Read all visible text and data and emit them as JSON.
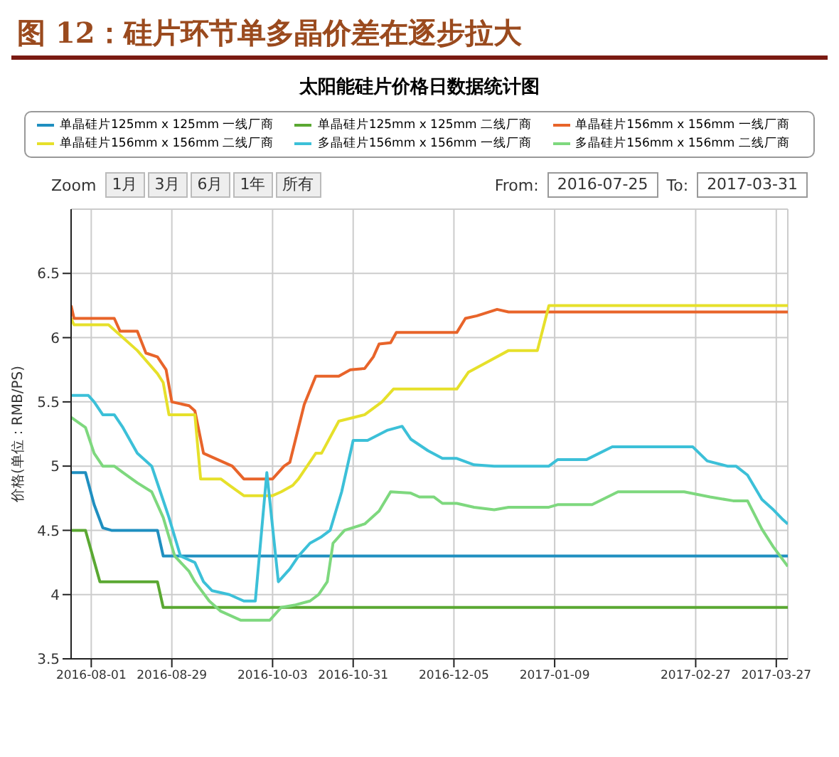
{
  "chart_data": {
    "type": "line",
    "title": "图 12：硅片环节单多晶价差在逐步拉大",
    "subtitle": "太阳能硅片价格日数据统计图",
    "ylabel": "价格(单位：RMB/PS)",
    "annotations": [
      "Zoom",
      "1月",
      "3月",
      "6月",
      "1年",
      "所有",
      "From:",
      "2016-07-25",
      "To:",
      "2017-03-31"
    ],
    "xlim": [
      "2016-07-25",
      "2017-03-31"
    ],
    "xticks": [
      "2016-08-01",
      "2016-08-29",
      "2016-10-03",
      "2016-10-31",
      "2016-12-05",
      "2017-01-09",
      "2017-02-27",
      "2017-03-27"
    ],
    "ylim": [
      3.5,
      7
    ],
    "yticks": [
      3.5,
      4,
      4.5,
      5,
      5.5,
      6,
      6.5
    ],
    "grid": true,
    "legend": "top",
    "series": [
      {
        "name": "单晶硅片125mm x 125mm 一线厂商",
        "color": "#1f8fc0",
        "x": [
          "2016-07-25",
          "2016-07-30",
          "2016-08-02",
          "2016-08-05",
          "2016-08-08",
          "2016-08-24",
          "2016-08-26",
          "2017-03-31"
        ],
        "values": [
          4.95,
          4.95,
          4.7,
          4.52,
          4.5,
          4.5,
          4.3,
          4.3
        ]
      },
      {
        "name": "单晶硅片125mm x 125mm 二线厂商",
        "color": "#5aa832",
        "x": [
          "2016-07-25",
          "2016-07-30",
          "2016-08-04",
          "2016-08-24",
          "2016-08-26",
          "2017-03-31"
        ],
        "values": [
          4.5,
          4.5,
          4.1,
          4.1,
          3.9,
          3.9
        ]
      },
      {
        "name": "单晶硅片156mm x 156mm 一线厂商",
        "color": "#e8642a",
        "x": [
          "2016-07-25",
          "2016-07-26",
          "2016-08-09",
          "2016-08-11",
          "2016-08-17",
          "2016-08-20",
          "2016-08-24",
          "2016-08-27",
          "2016-08-29",
          "2016-09-04",
          "2016-09-06",
          "2016-09-09",
          "2016-09-14",
          "2016-09-19",
          "2016-09-23",
          "2016-10-03",
          "2016-10-07",
          "2016-10-09",
          "2016-10-14",
          "2016-10-18",
          "2016-10-26",
          "2016-10-30",
          "2016-11-04",
          "2016-11-07",
          "2016-11-09",
          "2016-11-13",
          "2016-11-15",
          "2016-12-06",
          "2016-12-09",
          "2016-12-13",
          "2016-12-20",
          "2016-12-24",
          "2017-03-31"
        ],
        "values": [
          6.25,
          6.15,
          6.15,
          6.05,
          6.05,
          5.88,
          5.85,
          5.75,
          5.5,
          5.47,
          5.43,
          5.1,
          5.05,
          5,
          4.9,
          4.9,
          5,
          5.03,
          5.48,
          5.7,
          5.7,
          5.75,
          5.76,
          5.85,
          5.95,
          5.96,
          6.04,
          6.04,
          6.15,
          6.17,
          6.22,
          6.2,
          6.2
        ]
      },
      {
        "name": "单晶硅片156mm x 156mm 二线厂商",
        "color": "#e6e02a",
        "x": [
          "2016-07-25",
          "2016-07-26",
          "2016-08-07",
          "2016-08-17",
          "2016-08-24",
          "2016-08-26",
          "2016-08-28",
          "2016-09-06",
          "2016-09-08",
          "2016-09-15",
          "2016-09-18",
          "2016-09-23",
          "2016-10-03",
          "2016-10-06",
          "2016-10-10",
          "2016-10-12",
          "2016-10-18",
          "2016-10-20",
          "2016-10-26",
          "2016-11-04",
          "2016-11-10",
          "2016-11-14",
          "2016-12-06",
          "2016-12-10",
          "2016-12-24",
          "2017-01-03",
          "2017-01-07",
          "2017-03-31"
        ],
        "values": [
          6.15,
          6.1,
          6.1,
          5.9,
          5.72,
          5.65,
          5.4,
          5.4,
          4.9,
          4.9,
          4.85,
          4.77,
          4.77,
          4.8,
          4.85,
          4.9,
          5.1,
          5.1,
          5.35,
          5.4,
          5.5,
          5.6,
          5.6,
          5.73,
          5.9,
          5.9,
          6.25,
          6.25
        ]
      },
      {
        "name": "多晶硅片156mm x 156mm 一线厂商",
        "color": "#3cc0d8",
        "x": [
          "2016-07-25",
          "2016-07-31",
          "2016-08-02",
          "2016-08-05",
          "2016-08-09",
          "2016-08-12",
          "2016-08-17",
          "2016-08-22",
          "2016-08-25",
          "2016-08-28",
          "2016-09-01",
          "2016-09-06",
          "2016-09-09",
          "2016-09-12",
          "2016-09-18",
          "2016-09-23",
          "2016-09-27",
          "2016-10-01",
          "2016-10-05",
          "2016-10-09",
          "2016-10-12",
          "2016-10-16",
          "2016-10-20",
          "2016-10-23",
          "2016-10-27",
          "2016-10-31",
          "2016-11-05",
          "2016-11-12",
          "2016-11-17",
          "2016-11-20",
          "2016-11-26",
          "2016-12-01",
          "2016-12-06",
          "2016-12-12",
          "2016-12-19",
          "2017-01-07",
          "2017-01-10",
          "2017-01-20",
          "2017-01-29",
          "2017-02-26",
          "2017-03-03",
          "2017-03-10",
          "2017-03-13",
          "2017-03-17",
          "2017-03-22",
          "2017-03-26",
          "2017-03-29",
          "2017-03-31"
        ],
        "values": [
          5.55,
          5.55,
          5.5,
          5.4,
          5.4,
          5.3,
          5.1,
          5,
          4.8,
          4.6,
          4.3,
          4.25,
          4.1,
          4.03,
          4,
          3.95,
          3.95,
          4.95,
          4.1,
          4.2,
          4.3,
          4.4,
          4.45,
          4.5,
          4.8,
          5.2,
          5.2,
          5.28,
          5.31,
          5.21,
          5.12,
          5.06,
          5.06,
          5.01,
          5,
          5,
          5.05,
          5.05,
          5.15,
          5.15,
          5.04,
          5,
          5,
          4.93,
          4.74,
          4.66,
          4.59,
          4.55
        ]
      },
      {
        "name": "多晶硅片156mm x 156mm 二线厂商",
        "color": "#7ed87e",
        "x": [
          "2016-07-25",
          "2016-07-30",
          "2016-08-02",
          "2016-08-05",
          "2016-08-09",
          "2016-08-12",
          "2016-08-17",
          "2016-08-22",
          "2016-08-26",
          "2016-08-30",
          "2016-09-04",
          "2016-09-06",
          "2016-09-11",
          "2016-09-15",
          "2016-09-22",
          "2016-10-02",
          "2016-10-06",
          "2016-10-11",
          "2016-10-16",
          "2016-10-19",
          "2016-10-22",
          "2016-10-24",
          "2016-10-28",
          "2016-11-04",
          "2016-11-09",
          "2016-11-13",
          "2016-11-20",
          "2016-11-23",
          "2016-11-28",
          "2016-12-01",
          "2016-12-06",
          "2016-12-12",
          "2016-12-19",
          "2016-12-24",
          "2017-01-07",
          "2017-01-10",
          "2017-01-22",
          "2017-01-31",
          "2017-02-23",
          "2017-03-04",
          "2017-03-12",
          "2017-03-17",
          "2017-03-22",
          "2017-03-26",
          "2017-03-31"
        ],
        "values": [
          5.38,
          5.3,
          5.1,
          5,
          5,
          4.95,
          4.87,
          4.8,
          4.6,
          4.3,
          4.18,
          4.1,
          3.95,
          3.87,
          3.8,
          3.8,
          3.9,
          3.92,
          3.95,
          4,
          4.1,
          4.4,
          4.5,
          4.55,
          4.65,
          4.8,
          4.79,
          4.76,
          4.76,
          4.71,
          4.71,
          4.68,
          4.66,
          4.68,
          4.68,
          4.7,
          4.7,
          4.8,
          4.8,
          4.76,
          4.73,
          4.73,
          4.51,
          4.37,
          4.22
        ]
      }
    ]
  }
}
